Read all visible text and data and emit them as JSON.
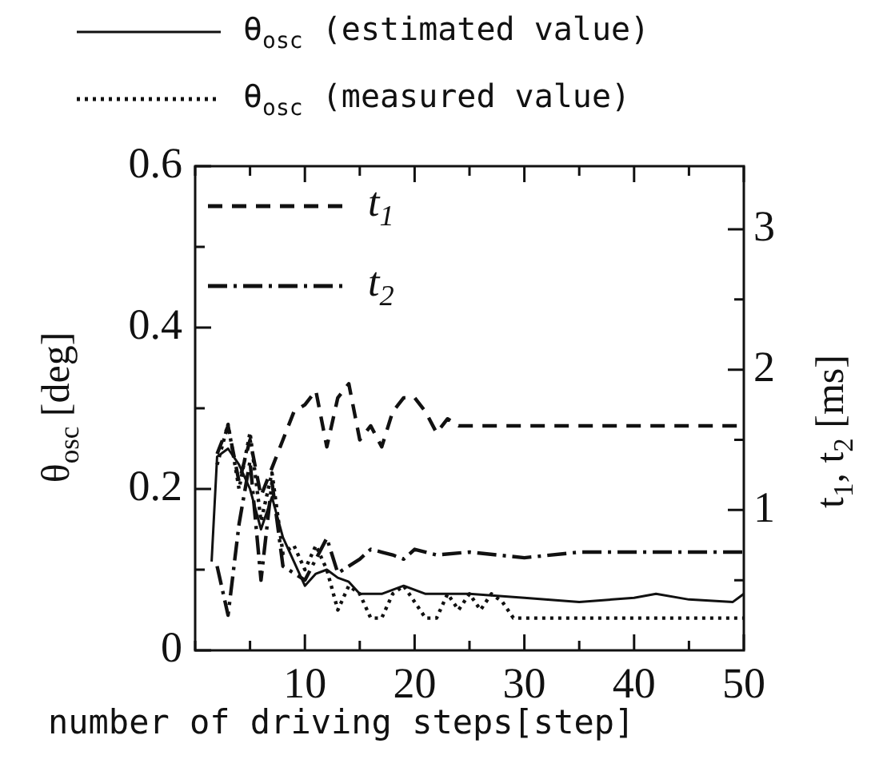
{
  "chart_data": {
    "type": "line",
    "xlabel": "number of driving steps[step]",
    "ylabel": "θ$_{osc}$ [deg]",
    "y2label": "t$_{1}$, t$_{2}$ [ms]",
    "xlim": [
      0,
      50
    ],
    "xticks": [
      {
        "value": 0,
        "label": null
      },
      {
        "value": 5,
        "label": null
      },
      10,
      {
        "value": 15,
        "label": null
      },
      20,
      {
        "value": 25,
        "label": null
      },
      30,
      {
        "value": 35,
        "label": null
      },
      40,
      {
        "value": 45,
        "label": null
      },
      50
    ],
    "ylim": [
      0,
      0.6
    ],
    "yticks": [
      0,
      {
        "value": 0.1,
        "label": null
      },
      0.2,
      {
        "value": 0.3,
        "label": null
      },
      0.4,
      {
        "value": 0.5,
        "label": null
      },
      0.6
    ],
    "y2lim": [
      0,
      3.45
    ],
    "y2ticks": [
      {
        "value": 0.5,
        "label": null
      },
      1,
      {
        "value": 1.5,
        "label": null
      },
      2,
      {
        "value": 2.5,
        "label": null
      },
      3
    ],
    "legend": "top",
    "grid": false,
    "marker": "none",
    "series": [
      {
        "name": "θ$_{osc}$ (estimated value)",
        "color": "#111111",
        "line_style": "solid",
        "x": [
          1.5,
          2,
          3,
          4,
          5,
          6,
          7,
          8,
          9,
          10,
          11,
          12,
          13,
          14,
          15,
          17,
          19,
          21,
          25,
          30,
          35,
          40,
          42,
          45,
          49,
          50
        ],
        "values": [
          0.11,
          0.24,
          0.25,
          0.23,
          0.2,
          0.15,
          0.19,
          0.14,
          0.11,
          0.08,
          0.095,
          0.1,
          0.09,
          0.085,
          0.07,
          0.07,
          0.08,
          0.07,
          0.07,
          0.065,
          0.06,
          0.065,
          0.07,
          0.063,
          0.06,
          0.07
        ]
      },
      {
        "name": "θ$_{osc}$ (measured value)",
        "color": "#111111",
        "line_style": "dotted",
        "x": [
          2,
          3,
          4,
          5,
          6,
          7,
          8,
          9,
          10,
          11,
          12,
          13,
          14,
          15,
          16,
          17,
          18,
          19,
          20,
          21,
          22,
          23,
          24,
          25,
          26,
          27,
          28,
          29,
          50
        ],
        "values": [
          0.23,
          0.28,
          0.2,
          0.27,
          0.16,
          0.22,
          0.12,
          0.13,
          0.1,
          0.13,
          0.1,
          0.05,
          0.08,
          0.07,
          0.04,
          0.04,
          0.07,
          0.08,
          0.06,
          0.04,
          0.04,
          0.07,
          0.05,
          0.07,
          0.05,
          0.07,
          0.06,
          0.04,
          0.04
        ]
      },
      {
        "name": "t$_{1}$",
        "color": "#111111",
        "line_style": "dashed",
        "axis": "y2",
        "x": [
          2,
          3,
          4,
          5,
          6,
          7,
          8,
          9,
          10,
          11,
          12,
          13,
          14,
          15,
          16,
          17,
          18,
          19,
          20,
          21,
          22,
          23,
          24,
          25,
          50
        ],
        "values": [
          1.4,
          1.6,
          1.2,
          1.5,
          1.1,
          1.3,
          1.5,
          1.7,
          1.75,
          1.85,
          1.45,
          1.8,
          1.9,
          1.5,
          1.6,
          1.45,
          1.7,
          1.8,
          1.8,
          1.7,
          1.55,
          1.65,
          1.6,
          1.6,
          1.6
        ]
      },
      {
        "name": "t$_{2}$",
        "color": "#111111",
        "line_style": "dashdot",
        "axis": "y2",
        "x": [
          2,
          3,
          4,
          5,
          6,
          7,
          8,
          9,
          10,
          11,
          12,
          13,
          14,
          15,
          16,
          17,
          18,
          19,
          20,
          22,
          25,
          30,
          35,
          50
        ],
        "values": [
          0.6,
          0.25,
          0.9,
          1.35,
          0.5,
          1.2,
          0.6,
          0.55,
          0.5,
          0.65,
          0.8,
          0.55,
          0.6,
          0.65,
          0.72,
          0.7,
          0.68,
          0.65,
          0.72,
          0.68,
          0.7,
          0.66,
          0.7,
          0.7
        ]
      }
    ]
  }
}
